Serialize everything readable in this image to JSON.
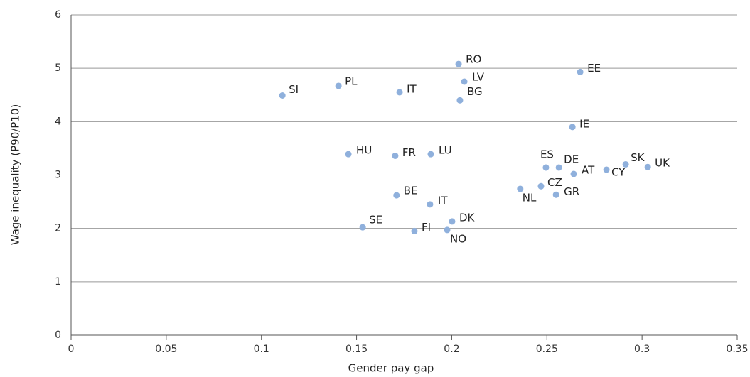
{
  "chart_data": {
    "type": "scatter",
    "xlabel": "Gender pay gap",
    "ylabel": "Wage inequality (P90/P10)",
    "labels": [
      "SI",
      "PL",
      "IT",
      "RO",
      "LV",
      "BG",
      "EE",
      "IE",
      "HU",
      "FR",
      "LU",
      "ES",
      "DE",
      "AT",
      "CY",
      "SK",
      "UK",
      "NL",
      "CZ",
      "GR",
      "BE",
      "IT",
      "DK",
      "SE",
      "FI",
      "NO"
    ],
    "x": [
      0.111,
      0.1405,
      0.1726,
      0.2036,
      0.2066,
      0.2043,
      0.2675,
      0.2634,
      0.1457,
      0.1703,
      0.189,
      0.2495,
      0.2563,
      0.2641,
      0.2813,
      0.2914,
      0.303,
      0.236,
      0.2469,
      0.2548,
      0.171,
      0.1886,
      0.2002,
      0.1532,
      0.1804,
      0.1976
    ],
    "values": [
      4.49,
      4.67,
      4.55,
      5.08,
      4.75,
      4.4,
      4.93,
      3.9,
      3.39,
      3.36,
      3.39,
      3.14,
      3.14,
      3.02,
      3.1,
      3.2,
      3.15,
      2.74,
      2.79,
      2.63,
      2.62,
      2.45,
      2.13,
      2.02,
      1.95,
      1.97
    ],
    "color": "#8fb0dc",
    "xlim": [
      0,
      0.35
    ],
    "xticks": [
      0,
      0.05,
      0.1,
      0.15,
      0.2,
      0.25,
      0.3,
      0.35
    ],
    "ylim": [
      0,
      6
    ],
    "yticks": [
      0,
      1,
      2,
      3,
      4,
      5,
      6
    ],
    "grid": true
  }
}
